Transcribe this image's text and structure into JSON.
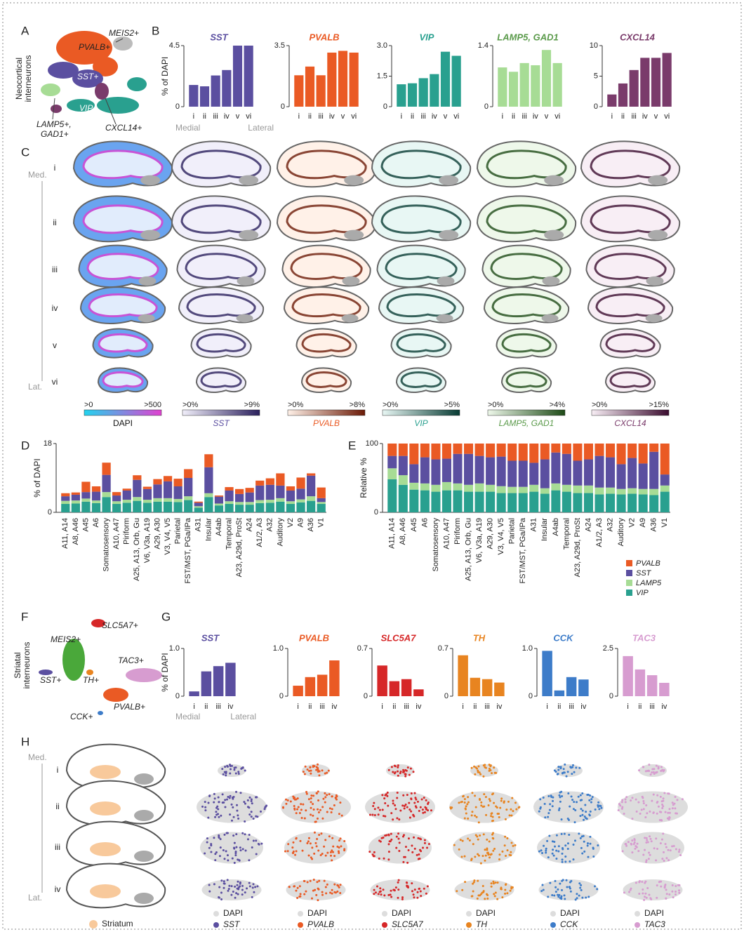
{
  "panel_labels": [
    "A",
    "B",
    "C",
    "D",
    "E",
    "F",
    "G",
    "H"
  ],
  "panel_a": {
    "y_label": [
      "Neocortical",
      "interneurons"
    ],
    "cluster_labels": [
      "MEIS2+",
      "PVALB+",
      "SST+",
      "VIP+",
      "LAMP5+,",
      "GAD1+",
      "CXCL14+"
    ]
  },
  "panel_c": {
    "axis_ends": [
      "Med.",
      "Lat."
    ],
    "row_labels": [
      "i",
      "ii",
      "iii",
      "iv",
      "v",
      "vi"
    ],
    "colorbars": [
      {
        "min_label": ">0",
        "max_label": ">500",
        "name": "DAPI",
        "name_color": "#111",
        "colors": [
          "#22d3ee",
          "#e040d0"
        ]
      },
      {
        "min_label": ">0%",
        "max_label": ">9%",
        "name": "SST",
        "name_color": "#5b4fa0",
        "colors": [
          "#f1effa",
          "#2a1f5c"
        ]
      },
      {
        "min_label": ">0%",
        "max_label": ">8%",
        "name": "PVALB",
        "name_color": "#ea5a24",
        "colors": [
          "#fff1e8",
          "#6b1a06"
        ]
      },
      {
        "min_label": ">0%",
        "max_label": ">5%",
        "name": "VIP",
        "name_color": "#29a08f",
        "colors": [
          "#e8f7f4",
          "#073b33"
        ]
      },
      {
        "min_label": ">0%",
        "max_label": ">4%",
        "name": "LAMP5, GAD1",
        "name_color": "#5a9a4a",
        "colors": [
          "#eef8ea",
          "#1d4a16"
        ]
      },
      {
        "min_label": ">0%",
        "max_label": ">15%",
        "name": "CXCL14",
        "name_color": "#7a3b6b",
        "colors": [
          "#f8eef5",
          "#3a0b2e"
        ]
      }
    ]
  },
  "panel_f": {
    "y_label": [
      "Striatal",
      "interneurons"
    ],
    "cluster_labels": [
      "SLC5A7+",
      "MEIS2+",
      "TAC3+",
      "SST+",
      "TH+",
      "PVALB+",
      "CCK+"
    ]
  },
  "panel_h": {
    "axis_ends": [
      "Med.",
      "Lat."
    ],
    "row_labels": [
      "i",
      "ii",
      "iii",
      "iv"
    ],
    "region_label": "Striatum",
    "region_color": "#f8c99b",
    "legends": [
      {
        "reference": "DAPI",
        "gene": "SST",
        "color": "#5b4fa0"
      },
      {
        "reference": "DAPI",
        "gene": "PVALB",
        "color": "#ea5a24"
      },
      {
        "reference": "DAPI",
        "gene": "SLC5A7",
        "color": "#d62728"
      },
      {
        "reference": "DAPI",
        "gene": "TH",
        "color": "#e88420"
      },
      {
        "reference": "DAPI",
        "gene": "CCK",
        "color": "#3d7cc9"
      },
      {
        "reference": "DAPI",
        "gene": "TAC3",
        "color": "#d79cd0"
      }
    ]
  },
  "chart_data": [
    {
      "type": "bar",
      "title": "SST",
      "color": "#5b4fa0",
      "categories": [
        "i",
        "ii",
        "iii",
        "iv",
        "v",
        "vi"
      ],
      "values": [
        1.6,
        1.5,
        2.3,
        2.7,
        4.5,
        4.5
      ],
      "ylim": [
        0,
        4.5
      ],
      "yticks": [
        0,
        4.5
      ],
      "ylabel": "% of DAPI",
      "x_end_labels": [
        "Medial",
        "Lateral"
      ]
    },
    {
      "type": "bar",
      "title": "PVALB",
      "color": "#ea5a24",
      "categories": [
        "i",
        "ii",
        "iii",
        "iv",
        "v",
        "vi"
      ],
      "values": [
        1.8,
        2.3,
        1.8,
        3.1,
        3.2,
        3.1
      ],
      "ylim": [
        0,
        3.5
      ],
      "yticks": [
        0,
        3.5
      ]
    },
    {
      "type": "bar",
      "title": "VIP",
      "color": "#29a08f",
      "categories": [
        "i",
        "ii",
        "iii",
        "iv",
        "v",
        "vi"
      ],
      "values": [
        1.1,
        1.15,
        1.4,
        1.6,
        2.7,
        2.5
      ],
      "ylim": [
        0,
        3
      ],
      "yticks": [
        0,
        1.5,
        {
          "value": 3,
          "label": "3.0"
        }
      ]
    },
    {
      "type": "bar",
      "title": "LAMP5, GAD1",
      "color": "#a7dc95",
      "title_color": "#5a9a4a",
      "categories": [
        "i",
        "ii",
        "iii",
        "iv",
        "v",
        "vi"
      ],
      "values": [
        0.9,
        0.8,
        1.0,
        0.95,
        1.3,
        1.0
      ],
      "ylim": [
        0,
        1.4
      ],
      "yticks": [
        0,
        1.4
      ]
    },
    {
      "type": "bar",
      "title": "CXCL14",
      "color": "#7a3b6b",
      "categories": [
        "i",
        "ii",
        "iii",
        "iv",
        "v",
        "vi"
      ],
      "values": [
        2,
        3.8,
        6,
        8,
        8,
        8.8
      ],
      "ylim": [
        0,
        10
      ],
      "yticks": [
        0,
        5,
        10
      ]
    },
    {
      "type": "stacked_bar",
      "ylabel": "% of DAPI",
      "ylim": [
        0,
        18
      ],
      "yticks": [
        0,
        18
      ],
      "categories": [
        "A11, A14",
        "A8, A46",
        "A45",
        "A6",
        "Somatosensory",
        "A10, A47",
        "Piriform",
        "A25, A13, Orb, Gu",
        "V6, V3a, A19",
        "A29, A30",
        "V3, V4, V5",
        "Parietal",
        "FST/MST, PGa/IPa",
        "A31",
        "Insular",
        "A4ab",
        "Temporal",
        "A23, A29d, ProSt",
        "A24",
        "A1/2, A3",
        "A32",
        "Auditory",
        "V2",
        "A9",
        "A36",
        "V1"
      ],
      "series": [
        {
          "name": "VIP",
          "color": "#29a08f",
          "values": [
            2.2,
            2.3,
            2.8,
            2.4,
            4.0,
            2.2,
            2.5,
            3.0,
            2.5,
            2.8,
            2.8,
            2.7,
            3.2,
            1.2,
            4.0,
            1.8,
            2.2,
            2.0,
            2.0,
            2.4,
            2.5,
            2.8,
            2.2,
            2.6,
            3.0,
            2.2
          ]
        },
        {
          "name": "LAMP5",
          "color": "#a7dc95",
          "values": [
            0.8,
            0.8,
            0.8,
            0.7,
            1.3,
            0.7,
            0.8,
            1.0,
            0.8,
            0.9,
            0.9,
            0.8,
            1.0,
            0.4,
            1.0,
            0.5,
            0.7,
            0.7,
            0.7,
            0.8,
            0.8,
            0.9,
            0.7,
            0.8,
            1.2,
            0.5
          ]
        },
        {
          "name": "SST",
          "color": "#5b4fa0",
          "values": [
            1.2,
            1.5,
            1.7,
            2.3,
            4.5,
            1.5,
            2.4,
            4.5,
            2.8,
            3.6,
            4.4,
            3.3,
            4.8,
            0.9,
            6.8,
            1.8,
            2.8,
            2.1,
            2.5,
            3.8,
            3.9,
            3.3,
            2.8,
            2.8,
            5.4,
            1.0
          ]
        },
        {
          "name": "PVALB",
          "color": "#ea5a24",
          "values": [
            0.8,
            0.6,
            2.7,
            1.4,
            3.2,
            0.9,
            0.5,
            1.2,
            0.6,
            1.4,
            1.4,
            2.0,
            2.3,
            0.3,
            3.4,
            0.3,
            0.9,
            1.3,
            1.2,
            1.3,
            1.7,
            3.2,
            1.1,
            2.9,
            0.6,
            2.8
          ]
        }
      ]
    },
    {
      "type": "stacked_bar",
      "ylabel": "Relative %",
      "ylim": [
        0,
        100
      ],
      "yticks": [
        0,
        100
      ],
      "legend": "lower right",
      "categories": [
        "A11, A14",
        "A8, A46",
        "A45",
        "A6",
        "Somatosensory",
        "A10, A47",
        "Piriform",
        "A25, A13, Orb, Gu",
        "V6, V3a, A19",
        "A29, A30",
        "V3, V4, V5",
        "Parietal",
        "FST/MST, PGa/IPa",
        "A31",
        "Insular",
        "A4ab",
        "Temporal",
        "A23, A29d, ProSt",
        "A24",
        "A1/2, A3",
        "A32",
        "Auditory",
        "V2",
        "A9",
        "A36",
        "V1"
      ],
      "series": [
        {
          "name": "PVALB",
          "color": "#ea5a24",
          "values": [
            18,
            18,
            30,
            20,
            23,
            22,
            15,
            15,
            18,
            20,
            19,
            25,
            25,
            28,
            23,
            13,
            15,
            25,
            23,
            18,
            20,
            30,
            21,
            29,
            12,
            45
          ]
        },
        {
          "name": "SST",
          "color": "#5b4fa0",
          "values": [
            18,
            28,
            27,
            38,
            37,
            34,
            43,
            45,
            40,
            40,
            43,
            38,
            38,
            32,
            42,
            45,
            45,
            36,
            38,
            46,
            44,
            36,
            44,
            37,
            54,
            16
          ]
        },
        {
          "name": "LAMP5",
          "color": "#a7dc95",
          "values": [
            16,
            14,
            10,
            10,
            10,
            12,
            10,
            10,
            12,
            10,
            10,
            9,
            9,
            10,
            8,
            10,
            10,
            11,
            11,
            10,
            9,
            8,
            8,
            8,
            9,
            9
          ]
        },
        {
          "name": "VIP",
          "color": "#29a08f",
          "values": [
            48,
            40,
            33,
            32,
            30,
            32,
            32,
            30,
            30,
            30,
            28,
            28,
            28,
            30,
            27,
            32,
            30,
            28,
            28,
            26,
            27,
            26,
            27,
            26,
            25,
            30
          ]
        }
      ]
    },
    {
      "type": "bar",
      "title": "SST",
      "color": "#5b4fa0",
      "categories": [
        "i",
        "ii",
        "iii",
        "iv"
      ],
      "values": [
        0.1,
        0.52,
        0.63,
        0.7
      ],
      "ylim": [
        0,
        1
      ],
      "yticks": [
        0,
        {
          "value": 1,
          "label": "1.0"
        }
      ],
      "ylabel": "% of DAPI",
      "x_end_labels": [
        "Medial",
        "Lateral"
      ]
    },
    {
      "type": "bar",
      "title": "PVALB",
      "color": "#ea5a24",
      "categories": [
        "i",
        "ii",
        "iii",
        "iv"
      ],
      "values": [
        0.22,
        0.4,
        0.45,
        0.75
      ],
      "ylim": [
        0,
        1
      ],
      "yticks": [
        0,
        {
          "value": 1,
          "label": "1.0"
        }
      ]
    },
    {
      "type": "bar",
      "title": "SLC5A7",
      "color": "#d62728",
      "categories": [
        "i",
        "ii",
        "iii",
        "iv"
      ],
      "values": [
        0.45,
        0.22,
        0.25,
        0.1
      ],
      "ylim": [
        0,
        0.7
      ],
      "yticks": [
        0,
        0.7
      ]
    },
    {
      "type": "bar",
      "title": "TH",
      "color": "#e88420",
      "categories": [
        "i",
        "ii",
        "iii",
        "iv"
      ],
      "values": [
        0.6,
        0.27,
        0.25,
        0.2
      ],
      "ylim": [
        0,
        0.7
      ],
      "yticks": [
        0,
        0.7
      ]
    },
    {
      "type": "bar",
      "title": "CCK",
      "color": "#3d7cc9",
      "categories": [
        "i",
        "ii",
        "iii",
        "iv"
      ],
      "values": [
        0.95,
        0.12,
        0.4,
        0.35
      ],
      "ylim": [
        0,
        1
      ],
      "yticks": [
        0,
        {
          "value": 1,
          "label": "1.0"
        }
      ]
    },
    {
      "type": "bar",
      "title": "TAC3",
      "color": "#d79cd0",
      "categories": [
        "i",
        "ii",
        "iii",
        "iv"
      ],
      "values": [
        2.1,
        1.4,
        1.1,
        0.7
      ],
      "ylim": [
        0,
        2.5
      ],
      "yticks": [
        0,
        2.5
      ]
    }
  ]
}
